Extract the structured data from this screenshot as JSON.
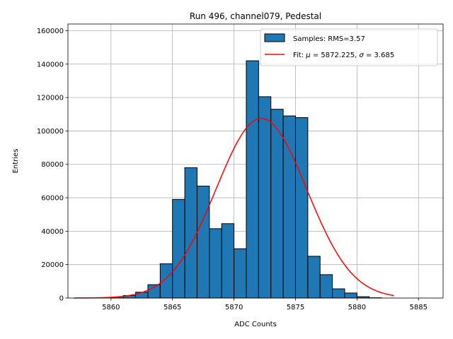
{
  "chart_data": {
    "type": "bar",
    "title": "Run 496, channel079, Pedestal",
    "xlabel": "ADC Counts",
    "ylabel": "Entries",
    "xlim": [
      5856.5,
      5887
    ],
    "ylim": [
      0,
      164000
    ],
    "grid": true,
    "legend_position": "top-right",
    "x_ticks": [
      5860,
      5865,
      5870,
      5875,
      5880,
      5885
    ],
    "y_ticks": [
      0,
      20000,
      40000,
      60000,
      80000,
      100000,
      120000,
      140000,
      160000
    ],
    "histogram": {
      "name": "Samples: RMS=3.57",
      "color": "#1f77b4",
      "edge_color": "#000000",
      "bin_width": 1,
      "bins": [
        {
          "left": 5860,
          "count": 300
        },
        {
          "left": 5861,
          "count": 1500
        },
        {
          "left": 5862,
          "count": 3500
        },
        {
          "left": 5863,
          "count": 8000
        },
        {
          "left": 5864,
          "count": 20500
        },
        {
          "left": 5865,
          "count": 59000
        },
        {
          "left": 5866,
          "count": 78000
        },
        {
          "left": 5867,
          "count": 67000
        },
        {
          "left": 5868,
          "count": 41500
        },
        {
          "left": 5869,
          "count": 44500
        },
        {
          "left": 5870,
          "count": 29500
        },
        {
          "left": 5871,
          "count": 142000
        },
        {
          "left": 5872,
          "count": 120500
        },
        {
          "left": 5873,
          "count": 113000
        },
        {
          "left": 5874,
          "count": 109000
        },
        {
          "left": 5875,
          "count": 108000
        },
        {
          "left": 5876,
          "count": 25000
        },
        {
          "left": 5877,
          "count": 14000
        },
        {
          "left": 5878,
          "count": 5500
        },
        {
          "left": 5879,
          "count": 3000
        },
        {
          "left": 5880,
          "count": 800
        },
        {
          "left": 5881,
          "count": 150
        }
      ]
    },
    "fit": {
      "name_prefix": "Fit: ",
      "mu_symbol": "μ",
      "sigma_symbol": "σ",
      "mu": 5872.225,
      "sigma": 3.685,
      "mu_text": " = 5872.225, ",
      "sigma_text": " = 3.685",
      "amplitude": 107500,
      "x_range": [
        5857,
        5883
      ],
      "color": "#ff0000"
    }
  }
}
